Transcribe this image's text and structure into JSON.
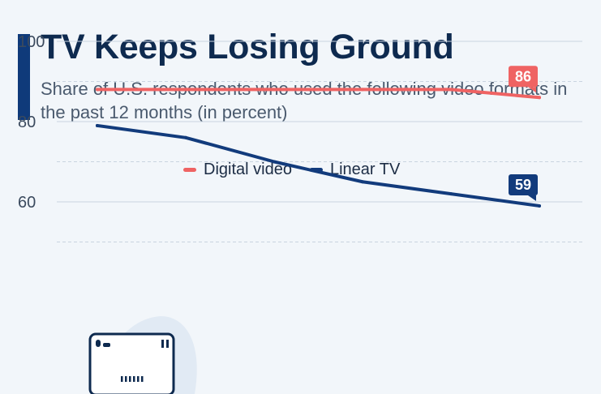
{
  "header": {
    "title": "TV Keeps Losing Ground",
    "subtitle": "Share of U.S. respondents who used the following video formats in the past 12 months (in percent)"
  },
  "colors": {
    "accent": "#0f3a7a",
    "digital": "#ef6363",
    "linear": "#123b7c",
    "grid": "#c9d4e0"
  },
  "chart_data": {
    "type": "line",
    "title": "TV Keeps Losing Ground",
    "subtitle": "Share of U.S. respondents who used the following video formats in the past 12 months (in percent)",
    "x": [
      0,
      1,
      2,
      3,
      4,
      5
    ],
    "series": [
      {
        "name": "Digital video",
        "color": "#ef6363",
        "values": [
          88,
          88,
          88,
          88,
          88,
          86
        ],
        "end_label": "86"
      },
      {
        "name": "Linear TV",
        "color": "#123b7c",
        "values": [
          79,
          76,
          70,
          65,
          62,
          59
        ],
        "end_label": "59"
      }
    ],
    "y_ticks": [
      60,
      80,
      100
    ],
    "ylim": [
      60,
      100
    ],
    "grid": true,
    "legend_position": "top-center",
    "icon": "tv-icon"
  }
}
